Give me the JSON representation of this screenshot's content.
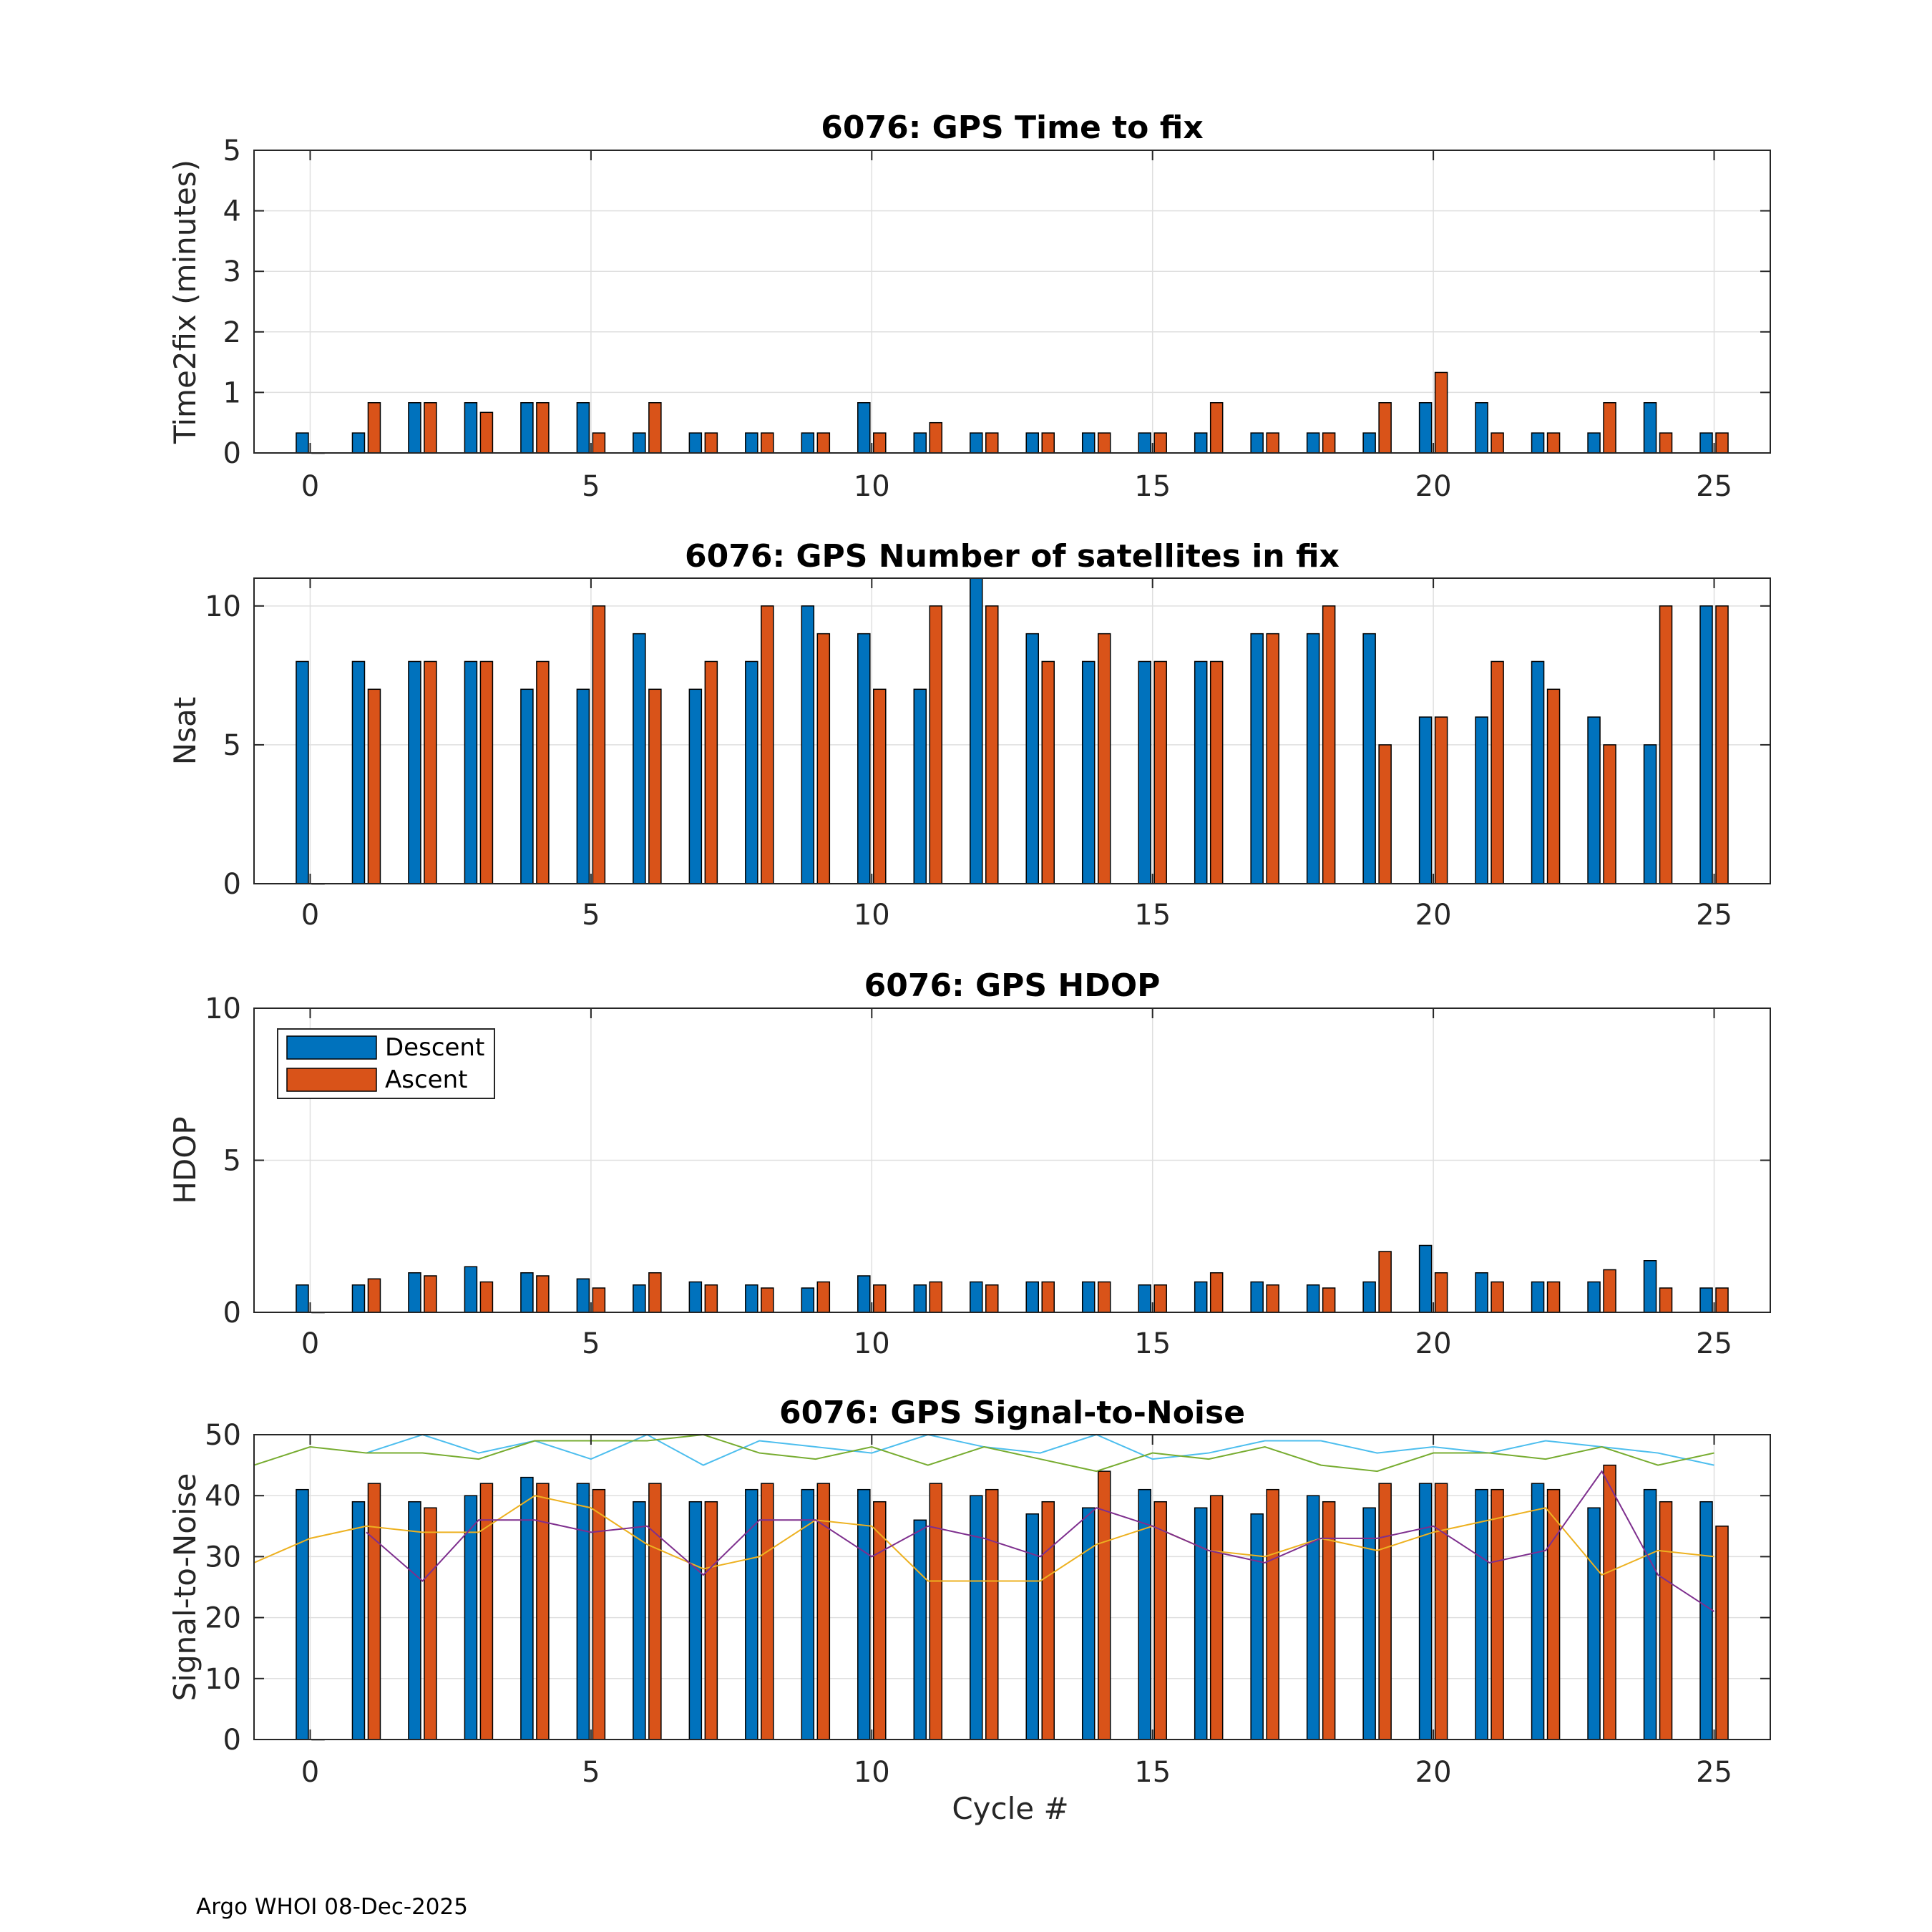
{
  "colors": {
    "descent": "#0072BD",
    "ascent": "#D95319",
    "snr_lines": [
      "#4DBEEE",
      "#77AC30",
      "#EDB120",
      "#7E2F8E"
    ],
    "grid": "#dfdfdf",
    "axis": "#262626"
  },
  "footer": "Argo WHOI 08-Dec-2025",
  "xlabel": "Cycle #",
  "chart_data": [
    {
      "type": "bar",
      "title": "6076: GPS Time to fix",
      "ylabel": "Time2fix (minutes)",
      "xlim": [
        -1,
        26
      ],
      "ylim": [
        0,
        5
      ],
      "xticks": [
        0,
        5,
        10,
        15,
        20,
        25
      ],
      "yticks": [
        0,
        1,
        2,
        3,
        4,
        5
      ],
      "x": [
        0,
        1,
        2,
        3,
        4,
        5,
        6,
        7,
        8,
        9,
        10,
        11,
        12,
        13,
        14,
        15,
        16,
        17,
        18,
        19,
        20,
        21,
        22,
        23,
        24,
        25
      ],
      "series": [
        {
          "name": "Descent",
          "values": [
            0.33,
            0.33,
            0.83,
            0.83,
            0.83,
            0.83,
            0.33,
            0.33,
            0.33,
            0.33,
            0.83,
            0.33,
            0.33,
            0.33,
            0.33,
            0.33,
            0.33,
            0.33,
            0.33,
            0.33,
            0.83,
            0.83,
            0.33,
            0.33,
            0.83,
            0.33
          ]
        },
        {
          "name": "Ascent",
          "values": [
            0,
            0.83,
            0.83,
            0.67,
            0.83,
            0.33,
            0.83,
            0.33,
            0.33,
            0.33,
            0.33,
            0.5,
            0.33,
            0.33,
            0.33,
            0.33,
            0.83,
            0.33,
            0.33,
            0.83,
            1.33,
            0.33,
            0.33,
            0.83,
            0.33,
            0.33
          ]
        }
      ]
    },
    {
      "type": "bar",
      "title": "6076: GPS Number of satellites in fix",
      "ylabel": "Nsat",
      "xlim": [
        -1,
        26
      ],
      "ylim": [
        0,
        11
      ],
      "xticks": [
        0,
        5,
        10,
        15,
        20,
        25
      ],
      "yticks": [
        0,
        5,
        10
      ],
      "x": [
        0,
        1,
        2,
        3,
        4,
        5,
        6,
        7,
        8,
        9,
        10,
        11,
        12,
        13,
        14,
        15,
        16,
        17,
        18,
        19,
        20,
        21,
        22,
        23,
        24,
        25
      ],
      "series": [
        {
          "name": "Descent",
          "values": [
            8,
            8,
            8,
            8,
            7,
            7,
            9,
            7,
            8,
            10,
            9,
            7,
            11,
            9,
            8,
            8,
            8,
            9,
            9,
            9,
            6,
            6,
            8,
            6,
            5,
            10
          ]
        },
        {
          "name": "Ascent",
          "values": [
            0,
            7,
            8,
            8,
            8,
            10,
            7,
            8,
            10,
            9,
            7,
            10,
            10,
            8,
            9,
            8,
            8,
            9,
            10,
            5,
            6,
            8,
            7,
            5,
            10,
            10
          ]
        }
      ]
    },
    {
      "type": "bar",
      "title": "6076: GPS HDOP",
      "ylabel": "HDOP",
      "xlim": [
        -1,
        26
      ],
      "ylim": [
        0,
        10
      ],
      "xticks": [
        0,
        5,
        10,
        15,
        20,
        25
      ],
      "yticks": [
        0,
        5,
        10
      ],
      "legend": {
        "position": "top-left",
        "entries": [
          "Descent",
          "Ascent"
        ]
      },
      "x": [
        0,
        1,
        2,
        3,
        4,
        5,
        6,
        7,
        8,
        9,
        10,
        11,
        12,
        13,
        14,
        15,
        16,
        17,
        18,
        19,
        20,
        21,
        22,
        23,
        24,
        25
      ],
      "series": [
        {
          "name": "Descent",
          "values": [
            0.9,
            0.9,
            1.3,
            1.5,
            1.3,
            1.1,
            0.9,
            1.0,
            0.9,
            0.8,
            1.2,
            0.9,
            1.0,
            1.0,
            1.0,
            0.9,
            1.0,
            1.0,
            0.9,
            1.0,
            2.2,
            1.3,
            1.0,
            1.0,
            1.7,
            0.8
          ]
        },
        {
          "name": "Ascent",
          "values": [
            0,
            1.1,
            1.2,
            1.0,
            1.2,
            0.8,
            1.3,
            0.9,
            0.8,
            1.0,
            0.9,
            1.0,
            0.9,
            1.0,
            1.0,
            0.9,
            1.3,
            0.9,
            0.8,
            2.0,
            1.3,
            1.0,
            1.0,
            1.4,
            0.8,
            0.8
          ]
        }
      ]
    },
    {
      "type": "bar",
      "title": "6076: GPS Signal-to-Noise",
      "ylabel": "Signal-to-Noise",
      "xlabel": "Cycle #",
      "xlim": [
        -1,
        26
      ],
      "ylim": [
        0,
        50
      ],
      "xticks": [
        0,
        5,
        10,
        15,
        20,
        25
      ],
      "yticks": [
        0,
        10,
        20,
        30,
        40,
        50
      ],
      "x": [
        0,
        1,
        2,
        3,
        4,
        5,
        6,
        7,
        8,
        9,
        10,
        11,
        12,
        13,
        14,
        15,
        16,
        17,
        18,
        19,
        20,
        21,
        22,
        23,
        24,
        25
      ],
      "series": [
        {
          "name": "Descent",
          "values": [
            41,
            39,
            39,
            40,
            43,
            42,
            39,
            39,
            41,
            41,
            41,
            36,
            40,
            37,
            38,
            41,
            38,
            37,
            40,
            38,
            42,
            41,
            42,
            38,
            41,
            39
          ]
        },
        {
          "name": "Ascent",
          "values": [
            0,
            42,
            38,
            42,
            42,
            41,
            42,
            39,
            42,
            42,
            39,
            42,
            41,
            39,
            44,
            39,
            40,
            41,
            39,
            42,
            42,
            41,
            41,
            45,
            39,
            35
          ]
        }
      ],
      "lines": [
        {
          "x": [
            1,
            2,
            3,
            4,
            5,
            6,
            7,
            8,
            9,
            10,
            11,
            12,
            13,
            14,
            15,
            16,
            17,
            18,
            19,
            20,
            21,
            22,
            23,
            24,
            25
          ],
          "values": [
            47,
            50,
            47,
            49,
            46,
            50,
            45,
            49,
            48,
            47,
            50,
            48,
            47,
            50,
            46,
            47,
            49,
            49,
            47,
            48,
            47,
            49,
            48,
            47,
            45
          ]
        },
        {
          "x": [
            -1,
            0,
            1,
            2,
            3,
            4,
            5,
            6,
            7,
            8,
            9,
            10,
            11,
            12,
            13,
            14,
            15,
            16,
            17,
            18,
            19,
            20,
            21,
            22,
            23,
            24,
            25
          ],
          "values": [
            45,
            48,
            47,
            47,
            46,
            49,
            49,
            49,
            50,
            47,
            46,
            48,
            45,
            48,
            46,
            44,
            47,
            46,
            48,
            45,
            44,
            47,
            47,
            46,
            48,
            45,
            47
          ]
        },
        {
          "x": [
            -1,
            0,
            1,
            2,
            3,
            4,
            5,
            6,
            7,
            8,
            9,
            10,
            11,
            12,
            13,
            14,
            15,
            16,
            17,
            18,
            19,
            20,
            21,
            22,
            23,
            24,
            25
          ],
          "values": [
            29,
            33,
            35,
            34,
            34,
            40,
            38,
            32,
            28,
            30,
            36,
            35,
            26,
            26,
            26,
            32,
            35,
            31,
            30,
            33,
            31,
            34,
            36,
            38,
            27,
            31,
            30
          ]
        },
        {
          "x": [
            1,
            2,
            3,
            4,
            5,
            6,
            7,
            8,
            9,
            10,
            11,
            12,
            13,
            14,
            15,
            16,
            17,
            18,
            19,
            20,
            21,
            22,
            23,
            24,
            25
          ],
          "values": [
            34,
            26,
            36,
            36,
            34,
            35,
            27,
            36,
            36,
            30,
            35,
            33,
            30,
            38,
            35,
            31,
            29,
            33,
            33,
            35,
            29,
            31,
            44,
            27,
            21
          ]
        }
      ]
    }
  ]
}
